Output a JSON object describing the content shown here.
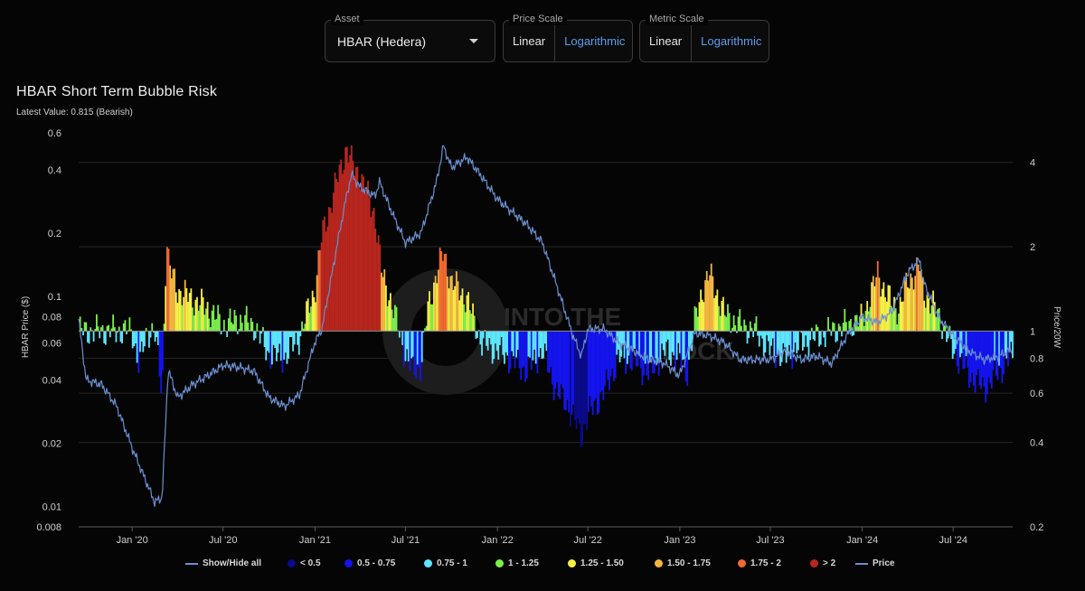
{
  "controls": {
    "asset": {
      "label": "Asset",
      "value": "HBAR (Hedera)"
    },
    "price_scale": {
      "label": "Price Scale",
      "options": [
        "Linear",
        "Logarithmic"
      ],
      "selected": "Logarithmic"
    },
    "metric_scale": {
      "label": "Metric Scale",
      "options": [
        "Linear",
        "Logarithmic"
      ],
      "selected": "Logarithmic"
    }
  },
  "header": {
    "title": "HBAR Short Term Bubble Risk",
    "latest": "Latest Value: 0.815 (Bearish)"
  },
  "watermark": [
    "INTO THE",
    "BLOCK"
  ],
  "legend": [
    {
      "label": "Show/Hide all",
      "kind": "line",
      "color": "#6a8fd0"
    },
    {
      "label": "< 0.5",
      "kind": "dot",
      "color": "#0a0a8a"
    },
    {
      "label": "0.5 - 0.75",
      "kind": "dot",
      "color": "#1414ee"
    },
    {
      "label": "0.75 - 1",
      "kind": "dot",
      "color": "#5ee6ff"
    },
    {
      "label": "1 - 1.25",
      "kind": "dot",
      "color": "#7cee4c"
    },
    {
      "label": "1.25 - 1.50",
      "kind": "dot",
      "color": "#f6f046"
    },
    {
      "label": "1.50 - 1.75",
      "kind": "dot",
      "color": "#f2b541"
    },
    {
      "label": "1.75 - 2",
      "kind": "dot",
      "color": "#f06a30"
    },
    {
      "label": "> 2",
      "kind": "dot",
      "color": "#b8261e"
    },
    {
      "label": "Price",
      "kind": "line",
      "color": "#6a8fd0"
    }
  ],
  "chart_data": {
    "type": "bar+line",
    "left_axis": {
      "title": "HBAR Price ($)",
      "scale": "log",
      "range": [
        0.008,
        0.6
      ],
      "ticks": [
        "0.008",
        "0.01",
        "0.02",
        "0.04",
        "0.06",
        "0.08",
        "0.1",
        "0.2",
        "0.4",
        "0.6"
      ]
    },
    "right_axis": {
      "title": "Price/20W",
      "scale": "log",
      "range": [
        0.2,
        5.1
      ],
      "ticks": [
        "0.2",
        "0.4",
        "0.6",
        "0.8",
        "1",
        "2",
        "4"
      ]
    },
    "x_axis": {
      "range": [
        "2019-09-16",
        "2024-10-28"
      ],
      "ticks": [
        "Jan '20",
        "Jul '20",
        "Jan '21",
        "Jul '21",
        "Jan '22",
        "Jul '22",
        "Jan '23",
        "Jul '23",
        "Jan '24",
        "Jul '24"
      ],
      "tick_dates": [
        "2020-01-01",
        "2020-07-01",
        "2021-01-01",
        "2021-07-01",
        "2022-01-01",
        "2022-07-01",
        "2023-01-01",
        "2023-07-01",
        "2024-01-01",
        "2024-07-01"
      ]
    },
    "price_series": {
      "name": "Price",
      "x": [
        "2019-09-16",
        "2019-10-01",
        "2019-11-01",
        "2019-12-01",
        "2020-01-01",
        "2020-02-15",
        "2020-03-01",
        "2020-03-13",
        "2020-03-20",
        "2020-04-01",
        "2020-05-01",
        "2020-06-01",
        "2020-07-01",
        "2020-08-01",
        "2020-09-01",
        "2020-10-01",
        "2020-11-01",
        "2020-12-01",
        "2020-12-31",
        "2021-01-15",
        "2021-02-15",
        "2021-03-05",
        "2021-03-15",
        "2021-04-01",
        "2021-05-01",
        "2021-05-10",
        "2021-06-01",
        "2021-07-01",
        "2021-08-01",
        "2021-09-01",
        "2021-09-15",
        "2021-10-01",
        "2021-11-01",
        "2021-12-01",
        "2022-01-01",
        "2022-02-01",
        "2022-03-01",
        "2022-04-01",
        "2022-05-01",
        "2022-06-01",
        "2022-06-18",
        "2022-07-01",
        "2022-08-01",
        "2022-09-01",
        "2022-10-01",
        "2022-11-01",
        "2022-12-01",
        "2022-12-31",
        "2023-02-01",
        "2023-03-01",
        "2023-04-01",
        "2023-05-01",
        "2023-06-01",
        "2023-07-01",
        "2023-08-01",
        "2023-09-01",
        "2023-10-01",
        "2023-11-01",
        "2023-12-01",
        "2024-01-01",
        "2024-02-01",
        "2024-03-01",
        "2024-04-01",
        "2024-04-25",
        "2024-05-01",
        "2024-06-01",
        "2024-07-01",
        "2024-08-01",
        "2024-09-01",
        "2024-10-01",
        "2024-10-28"
      ],
      "y": [
        0.078,
        0.04,
        0.038,
        0.03,
        0.019,
        0.0105,
        0.011,
        0.045,
        0.04,
        0.033,
        0.038,
        0.042,
        0.047,
        0.046,
        0.044,
        0.033,
        0.03,
        0.034,
        0.06,
        0.07,
        0.18,
        0.3,
        0.38,
        0.33,
        0.3,
        0.35,
        0.26,
        0.18,
        0.2,
        0.35,
        0.52,
        0.41,
        0.46,
        0.37,
        0.29,
        0.25,
        0.22,
        0.18,
        0.11,
        0.065,
        0.052,
        0.07,
        0.07,
        0.06,
        0.055,
        0.05,
        0.048,
        0.042,
        0.067,
        0.065,
        0.06,
        0.05,
        0.05,
        0.05,
        0.055,
        0.05,
        0.052,
        0.048,
        0.065,
        0.08,
        0.075,
        0.085,
        0.13,
        0.15,
        0.12,
        0.08,
        0.065,
        0.055,
        0.05,
        0.052,
        0.056
      ]
    },
    "ratio_series": {
      "name": "Price/20W",
      "bin_edges": [
        0.5,
        0.75,
        1,
        1.25,
        1.5,
        1.75,
        2
      ],
      "bin_colors": [
        "#0a0a8a",
        "#1414ee",
        "#5ee6ff",
        "#7cee4c",
        "#f6f046",
        "#f2b541",
        "#f06a30",
        "#b8261e"
      ],
      "x": [
        "2019-09-16",
        "2019-10-01",
        "2019-11-01",
        "2019-12-01",
        "2020-01-01",
        "2020-01-15",
        "2020-02-01",
        "2020-02-15",
        "2020-03-01",
        "2020-03-10",
        "2020-03-15",
        "2020-04-01",
        "2020-05-01",
        "2020-06-01",
        "2020-07-01",
        "2020-08-01",
        "2020-09-01",
        "2020-10-01",
        "2020-11-01",
        "2020-12-01",
        "2020-12-25",
        "2021-01-01",
        "2021-01-15",
        "2021-02-01",
        "2021-02-15",
        "2021-03-05",
        "2021-03-15",
        "2021-04-01",
        "2021-05-01",
        "2021-05-15",
        "2021-06-01",
        "2021-07-01",
        "2021-07-15",
        "2021-08-01",
        "2021-08-15",
        "2021-09-01",
        "2021-09-15",
        "2021-10-01",
        "2021-11-01",
        "2021-12-01",
        "2022-01-01",
        "2022-02-01",
        "2022-03-01",
        "2022-04-01",
        "2022-05-01",
        "2022-05-20",
        "2022-06-18",
        "2022-07-01",
        "2022-08-01",
        "2022-09-01",
        "2022-10-01",
        "2022-11-01",
        "2022-12-01",
        "2022-12-31",
        "2023-01-15",
        "2023-02-01",
        "2023-02-15",
        "2023-03-01",
        "2023-04-01",
        "2023-05-01",
        "2023-06-01",
        "2023-07-01",
        "2023-08-01",
        "2023-09-01",
        "2023-10-01",
        "2023-11-01",
        "2023-12-01",
        "2024-01-01",
        "2024-01-15",
        "2024-02-01",
        "2024-02-15",
        "2024-03-01",
        "2024-03-15",
        "2024-04-01",
        "2024-04-25",
        "2024-05-01",
        "2024-06-01",
        "2024-07-01",
        "2024-08-01",
        "2024-09-01",
        "2024-10-01",
        "2024-10-28"
      ],
      "y": [
        1,
        1,
        1,
        1,
        1,
        0.75,
        1,
        1,
        0.6,
        2.2,
        1.7,
        1.4,
        1.3,
        1.2,
        1.05,
        1.1,
        1.05,
        0.82,
        0.8,
        0.95,
        1.3,
        1.4,
        2.2,
        2.8,
        3.5,
        4.5,
        4.0,
        3.6,
        2.6,
        1.6,
        1.3,
        0.82,
        0.72,
        0.75,
        1.2,
        1.6,
        1.9,
        1.5,
        1.3,
        0.9,
        0.85,
        0.78,
        0.72,
        0.85,
        0.6,
        0.55,
        0.42,
        0.5,
        0.6,
        0.8,
        0.78,
        0.7,
        0.85,
        0.8,
        0.7,
        1.1,
        1.4,
        1.6,
        1.15,
        1.05,
        1.0,
        0.85,
        0.8,
        0.9,
        0.95,
        1.0,
        1.05,
        1.1,
        1.3,
        1.6,
        1.4,
        1.25,
        1.2,
        1.5,
        1.7,
        1.4,
        1.15,
        0.85,
        0.7,
        0.62,
        0.72,
        0.82
      ]
    }
  }
}
